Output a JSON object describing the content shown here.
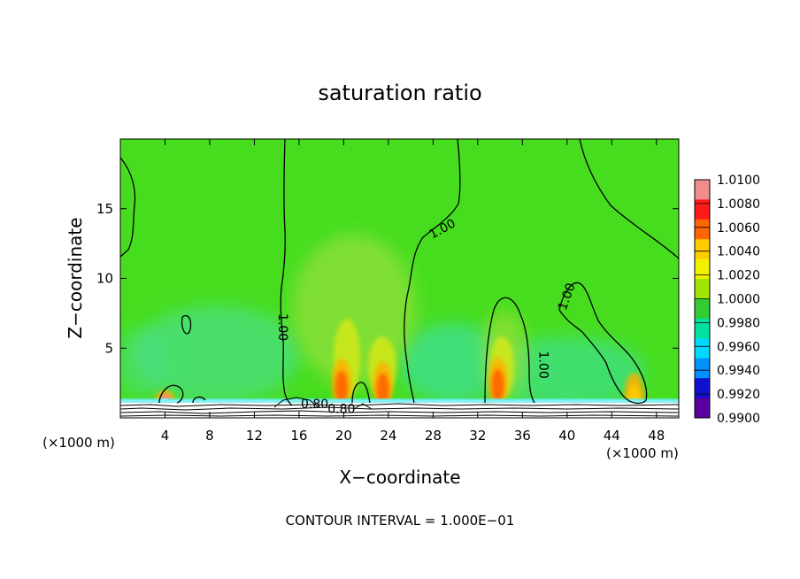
{
  "chart_data": {
    "type": "heatmap",
    "title": "saturation ratio",
    "xlabel": "X−coordinate",
    "ylabel": "Z−coordinate",
    "x_unit": "(×1000 m)",
    "y_unit": "(×1000 m)",
    "xlim": [
      0,
      50
    ],
    "ylim": [
      0,
      20
    ],
    "x_ticks": [
      4,
      8,
      12,
      16,
      20,
      24,
      28,
      32,
      36,
      40,
      44,
      48
    ],
    "y_ticks": [
      5,
      10,
      15
    ],
    "contour_interval_text": "CONTOUR INTERVAL = 1.000E−01",
    "contour_labels": [
      {
        "text": "1.00",
        "x": 14.2,
        "z": 6.5
      },
      {
        "text": "1.00",
        "x": 29.0,
        "z": 13.3
      },
      {
        "text": "1.00",
        "x": 37.5,
        "z": 3.8
      },
      {
        "text": "1.00",
        "x": 40.3,
        "z": 8.6
      },
      {
        "text": "0.80",
        "x": 17.4,
        "z": 0.7
      },
      {
        "text": "0.80",
        "x": 19.8,
        "z": 0.35
      }
    ],
    "colorbar": {
      "levels": [
        "1.0100",
        "1.0080",
        "1.0060",
        "1.0040",
        "1.0020",
        "1.0000",
        "0.9980",
        "0.9960",
        "0.9940",
        "0.9920",
        "0.9900"
      ],
      "colors": [
        "#f08c8c",
        "#ff1a1a",
        "#ff6600",
        "#ffcc00",
        "#f0f000",
        "#a0e600",
        "#33cc33",
        "#00e0a0",
        "#00d8ff",
        "#0090ff",
        "#1010d0",
        "#5a00a0"
      ]
    },
    "field_background": "#47dd1f",
    "hotspots": [
      {
        "x": 4.0,
        "z": 1.2,
        "level": "1.0100"
      },
      {
        "x": 19.8,
        "z": 2.2,
        "level": "1.0060"
      },
      {
        "x": 23.5,
        "z": 2.0,
        "level": "1.0060"
      },
      {
        "x": 33.8,
        "z": 2.3,
        "level": "1.0060"
      },
      {
        "x": 46.0,
        "z": 1.2,
        "level": "1.0040"
      }
    ]
  }
}
